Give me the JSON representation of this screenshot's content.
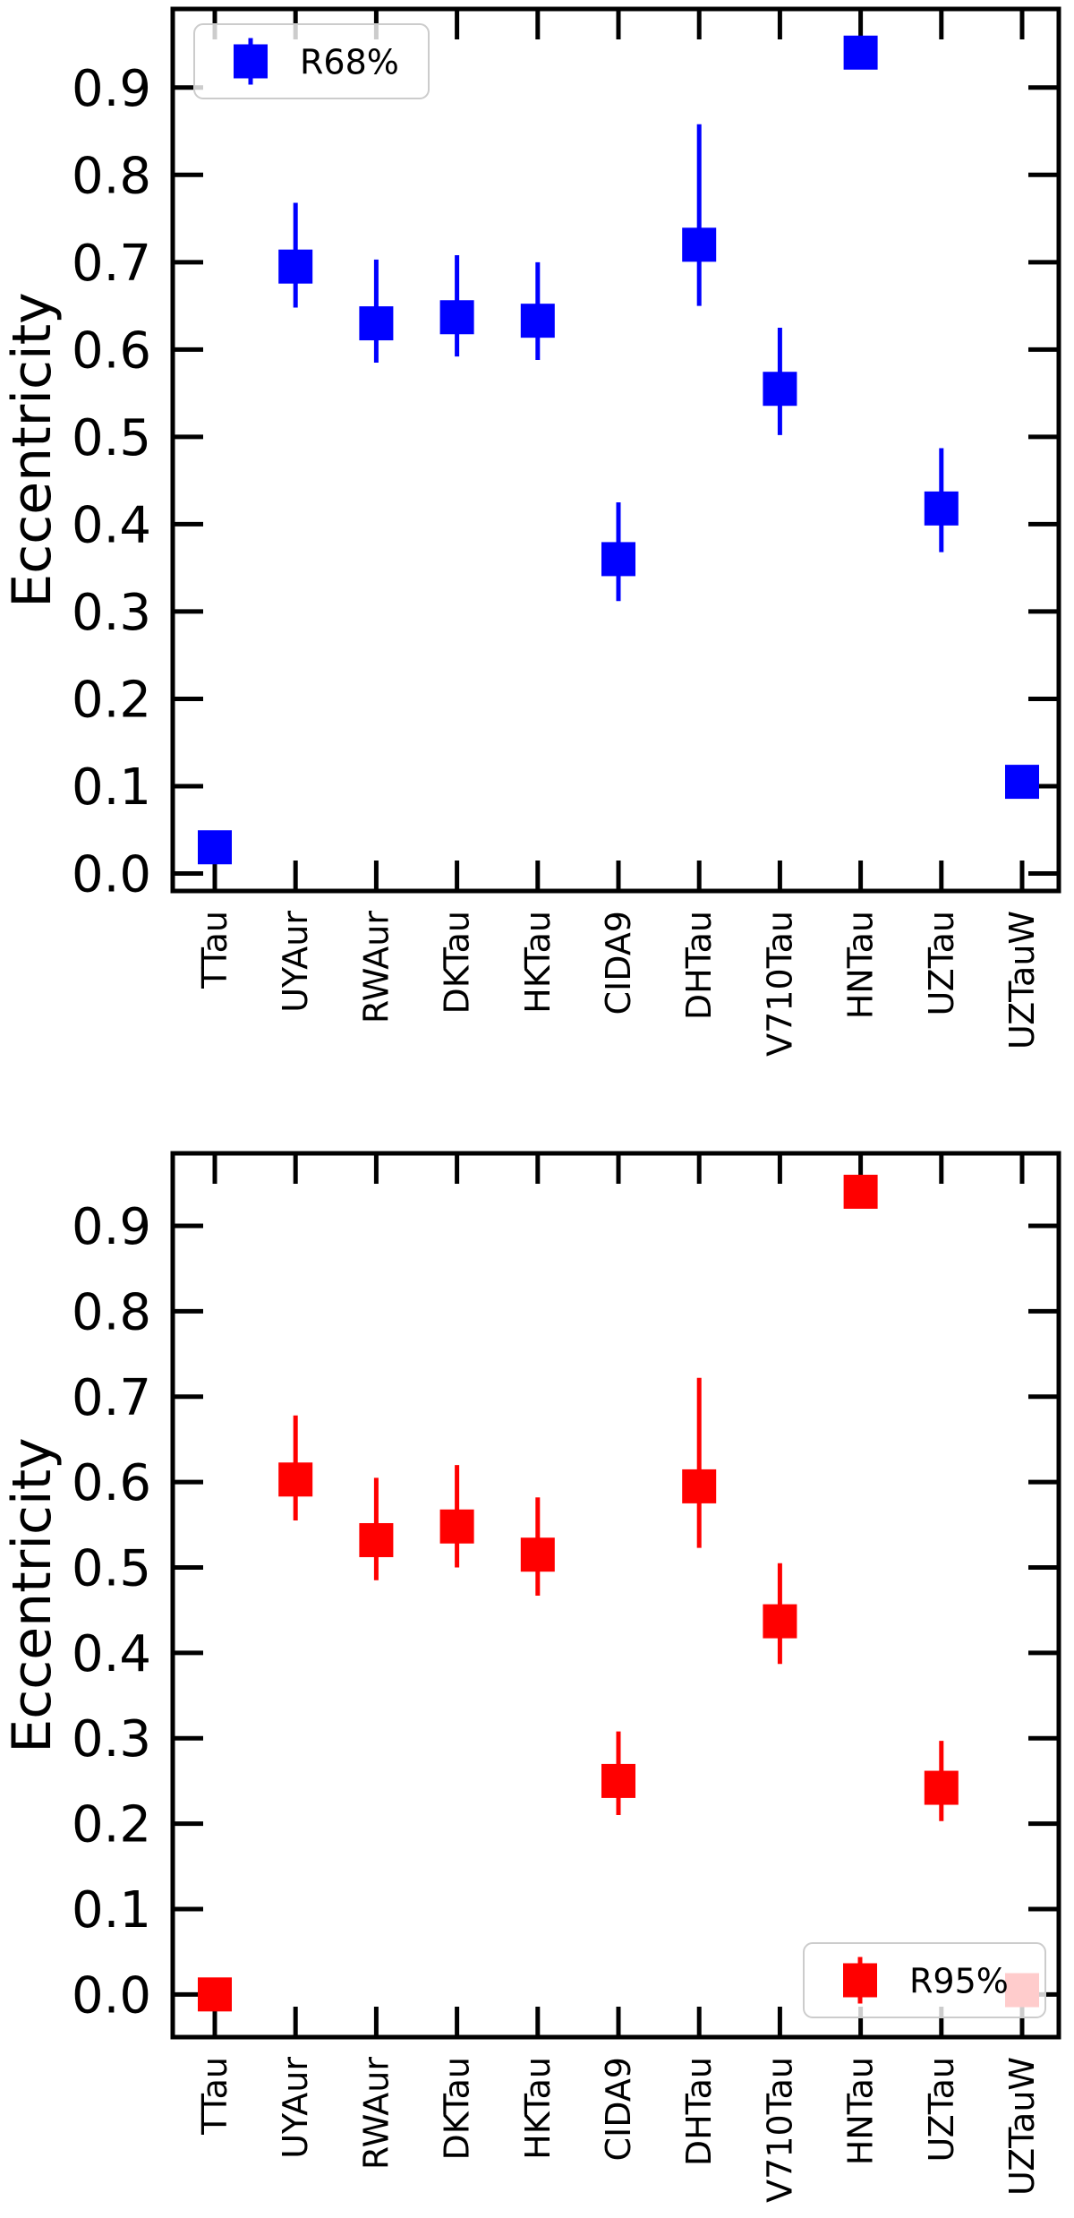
{
  "chart_data": [
    {
      "type": "scatter",
      "title": "",
      "xlabel": "",
      "ylabel": "Eccentricity",
      "ylim": [
        -0.02,
        0.99
      ],
      "yticks": [
        "0.0",
        "0.1",
        "0.2",
        "0.3",
        "0.4",
        "0.5",
        "0.6",
        "0.7",
        "0.8",
        "0.9"
      ],
      "categories": [
        "TTau",
        "UYAur",
        "RWAur",
        "DKTau",
        "HKTau",
        "CIDA9",
        "DHTau",
        "V710Tau",
        "HNTau",
        "UZTau",
        "UZTauW"
      ],
      "legend": {
        "position": "top-left",
        "entries": [
          "R68%"
        ]
      },
      "grid": false,
      "series": [
        {
          "name": "R68%",
          "color": "#0000ff",
          "marker": "square",
          "values": [
            0.03,
            0.695,
            0.63,
            0.637,
            0.633,
            0.36,
            0.72,
            0.555,
            0.94,
            0.418,
            0.105
          ],
          "err_low": [
            null,
            0.648,
            0.585,
            0.592,
            0.588,
            0.312,
            0.65,
            0.502,
            null,
            0.368,
            null
          ],
          "err_high": [
            null,
            0.768,
            0.703,
            0.708,
            0.7,
            0.425,
            0.858,
            0.625,
            null,
            0.487,
            null
          ]
        }
      ]
    },
    {
      "type": "scatter",
      "title": "",
      "xlabel": "",
      "ylabel": "Eccentricity",
      "ylim": [
        -0.05,
        0.985
      ],
      "yticks": [
        "0.0",
        "0.1",
        "0.2",
        "0.3",
        "0.4",
        "0.5",
        "0.6",
        "0.7",
        "0.8",
        "0.9"
      ],
      "categories": [
        "TTau",
        "UYAur",
        "RWAur",
        "DKTau",
        "HKTau",
        "CIDA9",
        "DHTau",
        "V710Tau",
        "HNTau",
        "UZTau",
        "UZTauW"
      ],
      "legend": {
        "position": "bottom-right",
        "entries": [
          "R95%"
        ]
      },
      "grid": false,
      "series": [
        {
          "name": "R95%",
          "color": "#ff0000",
          "marker": "square",
          "values": [
            0.0,
            0.603,
            0.532,
            0.548,
            0.515,
            0.25,
            0.595,
            0.437,
            0.94,
            0.242,
            0.005
          ],
          "err_low": [
            null,
            0.555,
            0.485,
            0.5,
            0.467,
            0.21,
            0.523,
            0.387,
            null,
            0.203,
            null
          ],
          "err_high": [
            null,
            0.678,
            0.605,
            0.62,
            0.582,
            0.308,
            0.722,
            0.505,
            null,
            0.297,
            null
          ]
        }
      ]
    }
  ]
}
